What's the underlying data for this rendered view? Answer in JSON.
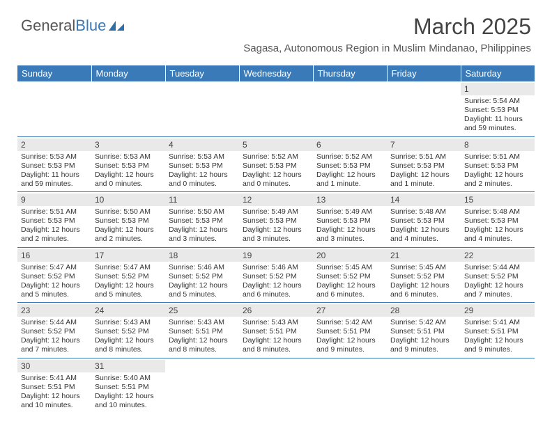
{
  "logo": {
    "t1": "General",
    "t2": "Blue"
  },
  "title": "March 2025",
  "subtitle": "Sagasa, Autonomous Region in Muslim Mindanao, Philippines",
  "colors": {
    "accent": "#3a7ab8",
    "header_text": "#ffffff",
    "daynum_bg": "#e9e9e9",
    "border": "#3a7ab8"
  },
  "dayheaders": [
    "Sunday",
    "Monday",
    "Tuesday",
    "Wednesday",
    "Thursday",
    "Friday",
    "Saturday"
  ],
  "weeks": [
    [
      null,
      null,
      null,
      null,
      null,
      null,
      {
        "n": "1",
        "sr": "Sunrise: 5:54 AM",
        "ss": "Sunset: 5:53 PM",
        "dl": "Daylight: 11 hours and 59 minutes."
      }
    ],
    [
      {
        "n": "2",
        "sr": "Sunrise: 5:53 AM",
        "ss": "Sunset: 5:53 PM",
        "dl": "Daylight: 11 hours and 59 minutes."
      },
      {
        "n": "3",
        "sr": "Sunrise: 5:53 AM",
        "ss": "Sunset: 5:53 PM",
        "dl": "Daylight: 12 hours and 0 minutes."
      },
      {
        "n": "4",
        "sr": "Sunrise: 5:53 AM",
        "ss": "Sunset: 5:53 PM",
        "dl": "Daylight: 12 hours and 0 minutes."
      },
      {
        "n": "5",
        "sr": "Sunrise: 5:52 AM",
        "ss": "Sunset: 5:53 PM",
        "dl": "Daylight: 12 hours and 0 minutes."
      },
      {
        "n": "6",
        "sr": "Sunrise: 5:52 AM",
        "ss": "Sunset: 5:53 PM",
        "dl": "Daylight: 12 hours and 1 minute."
      },
      {
        "n": "7",
        "sr": "Sunrise: 5:51 AM",
        "ss": "Sunset: 5:53 PM",
        "dl": "Daylight: 12 hours and 1 minute."
      },
      {
        "n": "8",
        "sr": "Sunrise: 5:51 AM",
        "ss": "Sunset: 5:53 PM",
        "dl": "Daylight: 12 hours and 2 minutes."
      }
    ],
    [
      {
        "n": "9",
        "sr": "Sunrise: 5:51 AM",
        "ss": "Sunset: 5:53 PM",
        "dl": "Daylight: 12 hours and 2 minutes."
      },
      {
        "n": "10",
        "sr": "Sunrise: 5:50 AM",
        "ss": "Sunset: 5:53 PM",
        "dl": "Daylight: 12 hours and 2 minutes."
      },
      {
        "n": "11",
        "sr": "Sunrise: 5:50 AM",
        "ss": "Sunset: 5:53 PM",
        "dl": "Daylight: 12 hours and 3 minutes."
      },
      {
        "n": "12",
        "sr": "Sunrise: 5:49 AM",
        "ss": "Sunset: 5:53 PM",
        "dl": "Daylight: 12 hours and 3 minutes."
      },
      {
        "n": "13",
        "sr": "Sunrise: 5:49 AM",
        "ss": "Sunset: 5:53 PM",
        "dl": "Daylight: 12 hours and 3 minutes."
      },
      {
        "n": "14",
        "sr": "Sunrise: 5:48 AM",
        "ss": "Sunset: 5:53 PM",
        "dl": "Daylight: 12 hours and 4 minutes."
      },
      {
        "n": "15",
        "sr": "Sunrise: 5:48 AM",
        "ss": "Sunset: 5:53 PM",
        "dl": "Daylight: 12 hours and 4 minutes."
      }
    ],
    [
      {
        "n": "16",
        "sr": "Sunrise: 5:47 AM",
        "ss": "Sunset: 5:52 PM",
        "dl": "Daylight: 12 hours and 5 minutes."
      },
      {
        "n": "17",
        "sr": "Sunrise: 5:47 AM",
        "ss": "Sunset: 5:52 PM",
        "dl": "Daylight: 12 hours and 5 minutes."
      },
      {
        "n": "18",
        "sr": "Sunrise: 5:46 AM",
        "ss": "Sunset: 5:52 PM",
        "dl": "Daylight: 12 hours and 5 minutes."
      },
      {
        "n": "19",
        "sr": "Sunrise: 5:46 AM",
        "ss": "Sunset: 5:52 PM",
        "dl": "Daylight: 12 hours and 6 minutes."
      },
      {
        "n": "20",
        "sr": "Sunrise: 5:45 AM",
        "ss": "Sunset: 5:52 PM",
        "dl": "Daylight: 12 hours and 6 minutes."
      },
      {
        "n": "21",
        "sr": "Sunrise: 5:45 AM",
        "ss": "Sunset: 5:52 PM",
        "dl": "Daylight: 12 hours and 6 minutes."
      },
      {
        "n": "22",
        "sr": "Sunrise: 5:44 AM",
        "ss": "Sunset: 5:52 PM",
        "dl": "Daylight: 12 hours and 7 minutes."
      }
    ],
    [
      {
        "n": "23",
        "sr": "Sunrise: 5:44 AM",
        "ss": "Sunset: 5:52 PM",
        "dl": "Daylight: 12 hours and 7 minutes."
      },
      {
        "n": "24",
        "sr": "Sunrise: 5:43 AM",
        "ss": "Sunset: 5:52 PM",
        "dl": "Daylight: 12 hours and 8 minutes."
      },
      {
        "n": "25",
        "sr": "Sunrise: 5:43 AM",
        "ss": "Sunset: 5:51 PM",
        "dl": "Daylight: 12 hours and 8 minutes."
      },
      {
        "n": "26",
        "sr": "Sunrise: 5:43 AM",
        "ss": "Sunset: 5:51 PM",
        "dl": "Daylight: 12 hours and 8 minutes."
      },
      {
        "n": "27",
        "sr": "Sunrise: 5:42 AM",
        "ss": "Sunset: 5:51 PM",
        "dl": "Daylight: 12 hours and 9 minutes."
      },
      {
        "n": "28",
        "sr": "Sunrise: 5:42 AM",
        "ss": "Sunset: 5:51 PM",
        "dl": "Daylight: 12 hours and 9 minutes."
      },
      {
        "n": "29",
        "sr": "Sunrise: 5:41 AM",
        "ss": "Sunset: 5:51 PM",
        "dl": "Daylight: 12 hours and 9 minutes."
      }
    ],
    [
      {
        "n": "30",
        "sr": "Sunrise: 5:41 AM",
        "ss": "Sunset: 5:51 PM",
        "dl": "Daylight: 12 hours and 10 minutes."
      },
      {
        "n": "31",
        "sr": "Sunrise: 5:40 AM",
        "ss": "Sunset: 5:51 PM",
        "dl": "Daylight: 12 hours and 10 minutes."
      },
      null,
      null,
      null,
      null,
      null
    ]
  ]
}
